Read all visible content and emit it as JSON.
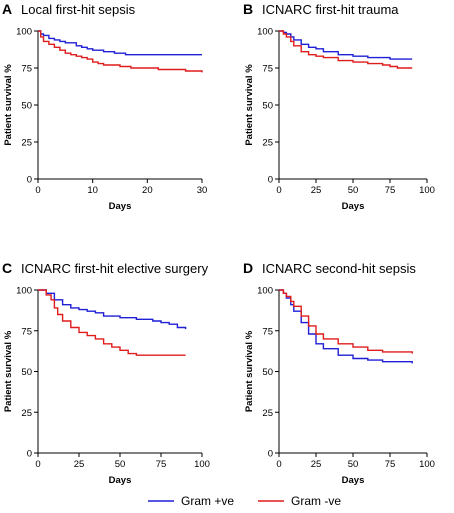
{
  "chart_data": [
    {
      "type": "line",
      "letter": "A",
      "title": "Local first-hit sepsis",
      "xlabel": "Days",
      "ylabel": "Patient survival %",
      "xlim": [
        0,
        30
      ],
      "ylim": [
        0,
        100
      ],
      "xticks": [
        0,
        10,
        20,
        30
      ],
      "yticks": [
        0,
        25,
        50,
        75,
        100
      ],
      "series": [
        {
          "name": "Gram +ve",
          "color": "#1f1fd6",
          "x": [
            0,
            0.5,
            1,
            2,
            3,
            4,
            5,
            6,
            7,
            8,
            9,
            10,
            11,
            12,
            13,
            14,
            15,
            16,
            17,
            20,
            25,
            30
          ],
          "y": [
            100,
            98,
            97,
            95,
            94,
            93,
            92,
            92,
            90,
            89,
            88,
            87,
            87,
            86,
            86,
            85,
            85,
            84,
            84,
            84,
            84,
            84
          ]
        },
        {
          "name": "Gram -ve",
          "color": "#e01b1b",
          "x": [
            0,
            0.5,
            1,
            2,
            3,
            4,
            5,
            6,
            7,
            8,
            9,
            10,
            11,
            12,
            13,
            15,
            17,
            20,
            22,
            25,
            27,
            30
          ],
          "y": [
            100,
            96,
            93,
            91,
            89,
            87,
            85,
            84,
            83,
            82,
            81,
            79,
            78,
            77,
            77,
            76,
            75,
            75,
            74,
            74,
            73,
            72
          ]
        }
      ]
    },
    {
      "type": "line",
      "letter": "B",
      "title": "ICNARC first-hit trauma",
      "xlabel": "Days",
      "ylabel": "Patient survival %",
      "xlim": [
        0,
        100
      ],
      "ylim": [
        0,
        100
      ],
      "xticks": [
        0,
        25,
        50,
        75,
        100
      ],
      "yticks": [
        0,
        25,
        50,
        75,
        100
      ],
      "series": [
        {
          "name": "Gram +ve",
          "color": "#1f1fd6",
          "x": [
            0,
            3,
            5,
            8,
            10,
            15,
            20,
            25,
            30,
            40,
            50,
            60,
            70,
            75,
            80,
            90
          ],
          "y": [
            100,
            99,
            98,
            96,
            94,
            91,
            89,
            88,
            86,
            84,
            83,
            82,
            82,
            81,
            81,
            81
          ]
        },
        {
          "name": "Gram -ve",
          "color": "#e01b1b",
          "x": [
            0,
            3,
            5,
            8,
            10,
            15,
            20,
            25,
            30,
            40,
            50,
            60,
            70,
            75,
            80,
            90
          ],
          "y": [
            100,
            98,
            96,
            93,
            90,
            86,
            84,
            83,
            82,
            80,
            79,
            78,
            77,
            76,
            75,
            75
          ]
        }
      ]
    },
    {
      "type": "line",
      "letter": "C",
      "title": "ICNARC first-hit elective surgery",
      "xlabel": "Days",
      "ylabel": "Patient survival %",
      "xlim": [
        0,
        100
      ],
      "ylim": [
        0,
        100
      ],
      "xticks": [
        0,
        25,
        50,
        75,
        100
      ],
      "yticks": [
        0,
        25,
        50,
        75,
        100
      ],
      "series": [
        {
          "name": "Gram +ve",
          "color": "#1f1fd6",
          "x": [
            0,
            5,
            10,
            15,
            20,
            25,
            30,
            35,
            40,
            50,
            60,
            70,
            75,
            80,
            85,
            90
          ],
          "y": [
            100,
            98,
            94,
            91,
            89,
            88,
            87,
            86,
            84,
            83,
            82,
            81,
            80,
            79,
            77,
            76
          ]
        },
        {
          "name": "Gram -ve",
          "color": "#e01b1b",
          "x": [
            0,
            5,
            8,
            10,
            12,
            15,
            20,
            25,
            30,
            35,
            40,
            45,
            50,
            55,
            60,
            65,
            70,
            80,
            90
          ],
          "y": [
            100,
            97,
            94,
            89,
            85,
            81,
            77,
            74,
            72,
            70,
            67,
            65,
            63,
            61,
            60,
            60,
            60,
            60,
            60
          ]
        }
      ]
    },
    {
      "type": "line",
      "letter": "D",
      "title": "ICNARC second-hit sepsis",
      "xlabel": "Days",
      "ylabel": "Patient survival %",
      "xlim": [
        0,
        100
      ],
      "ylim": [
        0,
        100
      ],
      "xticks": [
        0,
        25,
        50,
        75,
        100
      ],
      "yticks": [
        0,
        25,
        50,
        75,
        100
      ],
      "series": [
        {
          "name": "Gram +ve",
          "color": "#1f1fd6",
          "x": [
            0,
            3,
            5,
            8,
            10,
            15,
            20,
            25,
            30,
            40,
            50,
            60,
            70,
            80,
            90
          ],
          "y": [
            100,
            98,
            95,
            91,
            87,
            80,
            73,
            67,
            64,
            60,
            58,
            57,
            56,
            56,
            55
          ]
        },
        {
          "name": "Gram -ve",
          "color": "#e01b1b",
          "x": [
            0,
            3,
            5,
            8,
            10,
            15,
            20,
            25,
            30,
            40,
            50,
            60,
            70,
            80,
            90
          ],
          "y": [
            100,
            98,
            96,
            93,
            90,
            84,
            78,
            73,
            70,
            67,
            65,
            63,
            62,
            62,
            61
          ]
        }
      ]
    }
  ],
  "legend": {
    "placement": "bottom-center",
    "items": [
      {
        "label": "Gram +ve",
        "color": "#1f1fd6"
      },
      {
        "label": "Gram -ve",
        "color": "#e01b1b"
      }
    ]
  }
}
